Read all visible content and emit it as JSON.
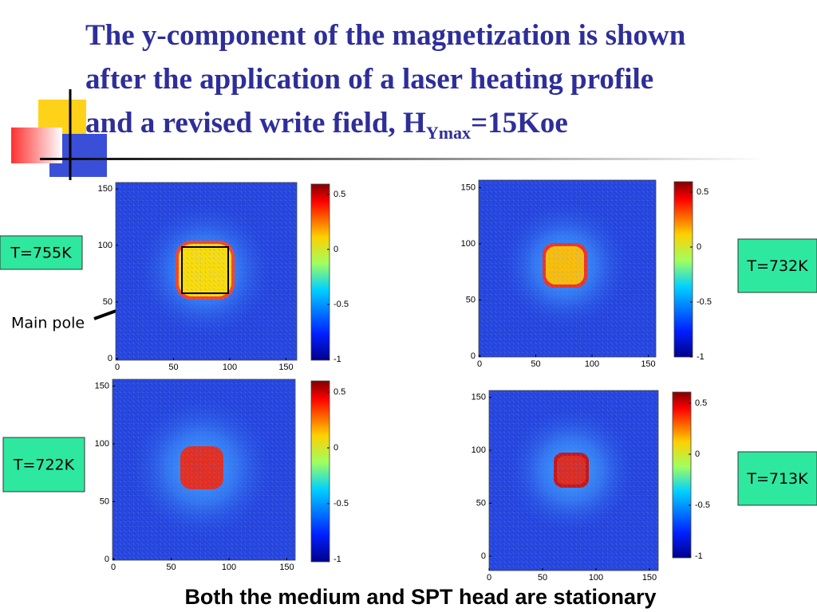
{
  "title": {
    "line1": "The y-component of the magnetization is shown",
    "line2": "after the application of a laser heating profile",
    "line3": "and a revised write field, H",
    "subscript": "Ymax",
    "line3_end": "=15Koe"
  },
  "panels": [
    {
      "label": "T=755K",
      "xticks": [
        0,
        50,
        100,
        150
      ],
      "yticks": [
        0,
        50,
        100,
        150
      ],
      "colorbar_ticks": [
        -1,
        -0.5,
        0,
        0.5
      ]
    },
    {
      "label": "T=732K",
      "xticks": [
        0,
        50,
        100,
        150
      ],
      "yticks": [
        0,
        50,
        100,
        150
      ],
      "colorbar_ticks": [
        -1,
        -0.5,
        0,
        0.5
      ]
    },
    {
      "label": "T=722K",
      "xticks": [
        0,
        50,
        100,
        150
      ],
      "yticks": [
        0,
        50,
        100,
        150
      ],
      "colorbar_ticks": [
        -1,
        -0.5,
        0,
        0.5
      ]
    },
    {
      "label": "T=713K",
      "xticks": [
        0,
        50,
        100,
        150
      ],
      "yticks": [
        0,
        50,
        100,
        150
      ],
      "colorbar_ticks": [
        -1,
        -0.5,
        0,
        0.5
      ]
    }
  ],
  "annotation": "Main pole",
  "footer": "Both the medium and SPT head are stationary"
}
